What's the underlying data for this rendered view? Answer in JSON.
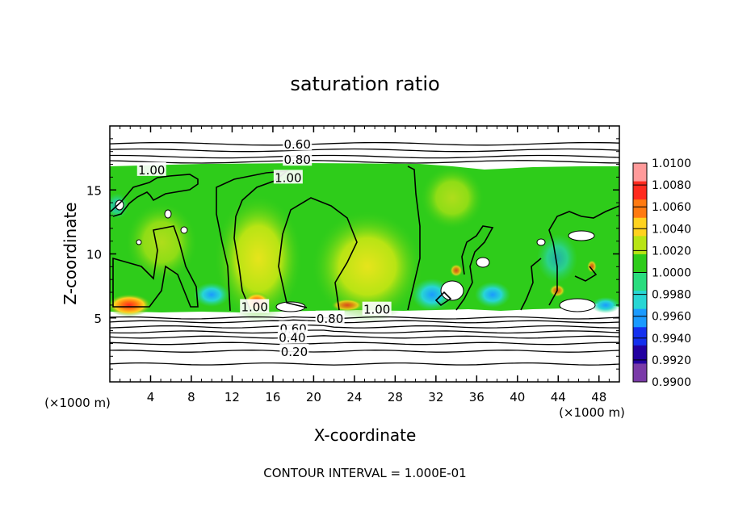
{
  "chart_data": {
    "type": "heatmap",
    "title": "saturation ratio",
    "xlabel": "X-coordinate",
    "ylabel": "Z-coordinate",
    "x_unit_left": "(×1000 m)",
    "x_unit_right": "(×1000 m)",
    "xlim": [
      0,
      50
    ],
    "ylim": [
      0,
      20
    ],
    "xticks": [
      4,
      8,
      12,
      16,
      20,
      24,
      28,
      32,
      36,
      40,
      44,
      48
    ],
    "xtick_labels": [
      "4",
      "8",
      "12",
      "16",
      "20",
      "24",
      "28",
      "32",
      "36",
      "40",
      "44",
      "48"
    ],
    "yticks": [
      5,
      10,
      15
    ],
    "ytick_labels": [
      "5",
      "10",
      "15"
    ],
    "contour_interval_text": "CONTOUR INTERVAL = 1.000E-01",
    "colorbar": {
      "levels": [
        "1.0100",
        "1.0080",
        "1.0060",
        "1.0040",
        "1.0020",
        "1.0000",
        "0.9980",
        "0.9960",
        "0.9940",
        "0.9920",
        "0.9900"
      ],
      "colors": [
        "#ff9a9a",
        "#ff2a1e",
        "#ff7a10",
        "#ffd21e",
        "#b8e414",
        "#2ecc1a",
        "#29dc7e",
        "#28d6d4",
        "#1a9aff",
        "#1430ee",
        "#2200a0",
        "#7a3aa8"
      ]
    },
    "cloud_layer": {
      "z_bottom": 5.4,
      "z_top": 16.8,
      "dominant_value": "1.0000"
    },
    "contour_labels": [
      {
        "text": "0.60",
        "x": 18.4,
        "z": 18.6
      },
      {
        "text": "0.80",
        "x": 18.4,
        "z": 17.4
      },
      {
        "text": "1.00",
        "x": 4.1,
        "z": 16.6
      },
      {
        "text": "1.00",
        "x": 17.5,
        "z": 16.0
      },
      {
        "text": "1.00",
        "x": 14.2,
        "z": 5.9
      },
      {
        "text": "0.80",
        "x": 21.6,
        "z": 5.0
      },
      {
        "text": "0.60",
        "x": 18.0,
        "z": 4.2
      },
      {
        "text": "0.40",
        "x": 17.9,
        "z": 3.5
      },
      {
        "text": "0.20",
        "x": 18.1,
        "z": 2.4
      },
      {
        "text": "1.00",
        "x": 26.2,
        "z": 5.7
      }
    ],
    "contour_levels_below": [
      0.2,
      0.3,
      0.4,
      0.5,
      0.6,
      0.7,
      0.8,
      0.9
    ],
    "contour_levels_above": [
      0.6,
      0.7,
      0.8,
      0.9
    ]
  }
}
